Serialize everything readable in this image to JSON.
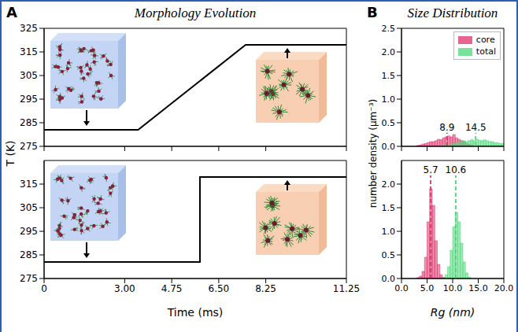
{
  "chart_data": [
    {
      "type": "line",
      "panel": "A",
      "title": "Morphology Evolution",
      "y_label": "T (K)",
      "xlim": [
        0,
        11.25
      ],
      "xticks": [
        0,
        3,
        4.75,
        6.5,
        8.25,
        11.25
      ],
      "ylim": [
        275,
        325
      ],
      "yticks": [
        275,
        285,
        295,
        305,
        315,
        325
      ],
      "tick_labels": "y",
      "x": [
        0,
        3.5,
        7.5,
        11.25
      ],
      "values": [
        282,
        282,
        318,
        318
      ],
      "color": "#000000"
    },
    {
      "type": "line",
      "x_label": "Time (ms)",
      "xlim": [
        0,
        11.25
      ],
      "xticks": [
        0,
        {
          "value": 3,
          "label": "3.00"
        },
        4.75,
        {
          "value": 6.5,
          "label": "6.50"
        },
        8.25,
        11.25
      ],
      "ylim": [
        275,
        325
      ],
      "yticks": [
        275,
        285,
        295,
        305,
        315
      ],
      "x": [
        0,
        5.8,
        5.8,
        11.25
      ],
      "values": [
        282,
        282,
        318,
        318
      ],
      "color": "#000000"
    },
    {
      "type": "histogram",
      "panel": "B",
      "title": "Size Distribution",
      "y_label": "number density (μm⁻³)",
      "legend": "upper right",
      "xlim": [
        0,
        20
      ],
      "xticks": [
        0,
        5,
        10,
        15,
        20
      ],
      "ylim": [
        0,
        2.5
      ],
      "yticks": [
        {
          "value": 0,
          "label": "0.0"
        },
        0.5,
        {
          "value": 1,
          "label": "1.0"
        },
        1.5,
        {
          "value": 2,
          "label": "2.0"
        },
        2.5
      ],
      "tick_labels": "y",
      "bins": [
        0,
        0.5,
        1,
        1.5,
        2,
        2.5,
        3,
        3.5,
        4,
        4.5,
        5,
        5.5,
        6,
        6.5,
        7,
        7.5,
        8,
        8.5,
        9,
        9.5,
        10,
        10.5,
        11,
        11.5,
        12,
        12.5,
        13,
        13.5,
        14,
        14.5,
        15,
        15.5,
        16,
        16.5,
        17,
        17.5,
        18,
        18.5,
        19,
        19.5,
        20
      ],
      "series": [
        {
          "name": "core",
          "color": "#e0336b",
          "values": [
            0,
            0,
            0,
            0,
            0,
            0,
            0.02,
            0.03,
            0.05,
            0.06,
            0.08,
            0.1,
            0.1,
            0.12,
            0.15,
            0.14,
            0.18,
            0.2,
            0.22,
            0.2,
            0.25,
            0.18,
            0.15,
            0.12,
            0.1,
            0.06,
            0.04,
            0.02,
            0,
            0,
            0,
            0,
            0,
            0,
            0,
            0,
            0,
            0,
            0,
            0
          ]
        },
        {
          "name": "total",
          "color": "#4cd97b",
          "values": [
            0,
            0,
            0,
            0,
            0,
            0,
            0,
            0,
            0,
            0,
            0,
            0,
            0,
            0,
            0,
            0,
            0.02,
            0.03,
            0.04,
            0.05,
            0.06,
            0.08,
            0.08,
            0.1,
            0.12,
            0.1,
            0.12,
            0.14,
            0.12,
            0.15,
            0.13,
            0.12,
            0.14,
            0.12,
            0.1,
            0.1,
            0.08,
            0.08,
            0.06,
            0.06
          ]
        }
      ],
      "reference_lines": [
        {
          "x": 8.9,
          "label": "8.9",
          "color": "#e0336b",
          "line_style": "dashed"
        },
        {
          "x": 14.5,
          "label": "14.5",
          "color": "#4cd97b",
          "line_style": "dashed"
        }
      ]
    },
    {
      "type": "histogram",
      "x_label": "Rg (nm)",
      "xlim": [
        0,
        20
      ],
      "xticks": [
        {
          "value": 0,
          "label": "0.0"
        },
        {
          "value": 5,
          "label": "5.0"
        },
        {
          "value": 10,
          "label": "10.0"
        },
        {
          "value": 15,
          "label": "15.0"
        },
        {
          "value": 20,
          "label": "20.0"
        }
      ],
      "ylim": [
        0,
        2.5
      ],
      "yticks": [
        {
          "value": 0,
          "label": "0.0"
        },
        0.5,
        {
          "value": 1,
          "label": "1.0"
        },
        1.5,
        {
          "value": 2,
          "label": "2.0"
        }
      ],
      "bins": [
        0,
        0.5,
        1,
        1.5,
        2,
        2.5,
        3,
        3.5,
        4,
        4.5,
        5,
        5.5,
        6,
        6.5,
        7,
        7.5,
        8,
        8.5,
        9,
        9.5,
        10,
        10.5,
        11,
        11.5,
        12,
        12.5,
        13,
        13.5,
        14,
        14.5,
        15,
        15.5,
        16,
        16.5,
        17,
        17.5,
        18,
        18.5,
        19,
        19.5,
        20
      ],
      "series": [
        {
          "name": "core",
          "color": "#e0336b",
          "values": [
            0,
            0,
            0,
            0,
            0,
            0,
            0.02,
            0.05,
            0.15,
            0.45,
            1.2,
            1.9,
            1.55,
            0.8,
            0.3,
            0.08,
            0.02,
            0,
            0,
            0,
            0,
            0,
            0,
            0,
            0,
            0,
            0,
            0,
            0,
            0,
            0,
            0,
            0,
            0,
            0,
            0,
            0,
            0,
            0,
            0
          ]
        },
        {
          "name": "total",
          "color": "#4cd97b",
          "values": [
            0,
            0,
            0,
            0,
            0,
            0,
            0,
            0,
            0,
            0,
            0,
            0,
            0,
            0,
            0,
            0,
            0.02,
            0.08,
            0.25,
            0.6,
            1.1,
            1.4,
            1.2,
            0.75,
            0.35,
            0.12,
            0.03,
            0,
            0,
            0,
            0,
            0,
            0,
            0,
            0,
            0,
            0,
            0,
            0,
            0
          ]
        }
      ],
      "reference_lines": [
        {
          "x": 5.7,
          "label": "5.7",
          "color": "#e0336b",
          "line_style": "dashed"
        },
        {
          "x": 10.6,
          "label": "10.6",
          "color": "#4cd97b",
          "line_style": "dashed"
        }
      ]
    }
  ]
}
